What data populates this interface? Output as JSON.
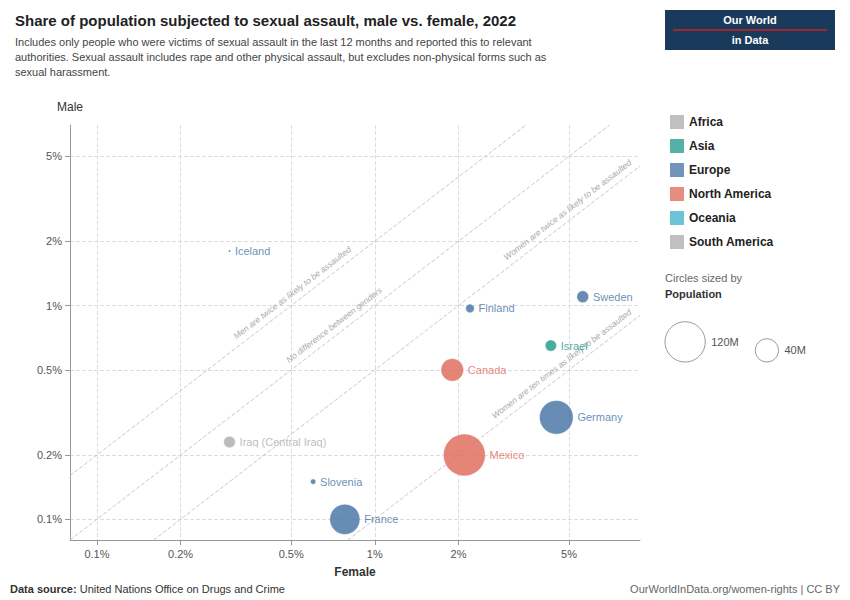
{
  "chart_data": {
    "type": "scatter",
    "title": "Share of population subjected to sexual assault, male vs. female, 2022",
    "subtitle": "Includes only people who were victims of sexual assault in the last 12 months and reported this to relevant\nauthorities. Sexual assault includes rape and other physical assault, but excludes non-physical forms such as\nsexual harassment.",
    "x_label": "Female",
    "y_label": "Male",
    "log": true,
    "grid": true,
    "legend": "right",
    "xlim": [
      0.0008,
      0.09
    ],
    "ylim": [
      0.0008,
      0.07
    ],
    "xticks": [
      {
        "value": 0.001,
        "label": "0.1%"
      },
      {
        "value": 0.002,
        "label": "0.2%"
      },
      {
        "value": 0.005,
        "label": "0.5%"
      },
      {
        "value": 0.01,
        "label": "1%"
      },
      {
        "value": 0.02,
        "label": "2%"
      },
      {
        "value": 0.05,
        "label": "5%"
      }
    ],
    "yticks": [
      {
        "value": 0.001,
        "label": "0.1%"
      },
      {
        "value": 0.002,
        "label": "0.2%"
      },
      {
        "value": 0.005,
        "label": "0.5%"
      },
      {
        "value": 0.01,
        "label": "1%"
      },
      {
        "value": 0.02,
        "label": "2%"
      },
      {
        "value": 0.05,
        "label": "5%"
      }
    ],
    "points": [
      {
        "name": "Iceland",
        "x": 0.003,
        "y": 0.018,
        "size": 0.37,
        "color": "#4e79a7"
      },
      {
        "name": "France",
        "x": 0.0078,
        "y": 0.001,
        "size": 68,
        "color": "#4e79a7"
      },
      {
        "name": "Slovenia",
        "x": 0.006,
        "y": 0.0015,
        "size": 2.1,
        "color": "#4e79a7"
      },
      {
        "name": "Finland",
        "x": 0.022,
        "y": 0.0097,
        "size": 5.5,
        "color": "#4e79a7"
      },
      {
        "name": "Sweden",
        "x": 0.056,
        "y": 0.011,
        "size": 10.4,
        "color": "#4e79a7"
      },
      {
        "name": "Germany",
        "x": 0.045,
        "y": 0.003,
        "size": 84,
        "color": "#4e79a7"
      },
      {
        "name": "Iraq (Central Iraq)",
        "x": 0.003,
        "y": 0.0023,
        "size": 10,
        "color": "#b0b0b0"
      },
      {
        "name": "Israel",
        "x": 0.043,
        "y": 0.0065,
        "size": 9.4,
        "color": "#2a9d8f"
      },
      {
        "name": "Canada",
        "x": 0.019,
        "y": 0.005,
        "size": 38,
        "color": "#e07060"
      },
      {
        "name": "Mexico",
        "x": 0.021,
        "y": 0.002,
        "size": 130,
        "color": "#e07060"
      }
    ],
    "legend_items": [
      {
        "name": "Africa",
        "color": "#b0b0b0"
      },
      {
        "name": "Asia",
        "color": "#2a9d8f"
      },
      {
        "name": "Europe",
        "color": "#4e79a7"
      },
      {
        "name": "North America",
        "color": "#e07060"
      },
      {
        "name": "Oceania",
        "color": "#48b4c8"
      },
      {
        "name": "South America",
        "color": "#b0b0b0"
      }
    ],
    "size_legend": {
      "title": "Circles sized by",
      "label": "Population",
      "values": [
        {
          "value": 120,
          "label": "120M"
        },
        {
          "value": 40,
          "label": "40M"
        }
      ]
    },
    "reference_lines": [
      {
        "slope": 2,
        "label": "Men are twice as likely to be assaulted"
      },
      {
        "slope": 1,
        "label": "No difference between genders"
      },
      {
        "slope": 0.5,
        "label": "Women are twice as likely to be assaulted"
      },
      {
        "slope": 0.1,
        "label": "Women are ten times as likely to be assaulted"
      }
    ],
    "logo": {
      "lines": [
        "Our World",
        "in Data"
      ],
      "color": "#1a3a5c"
    },
    "source": {
      "prefix": "Data source: ",
      "text": "United Nations Office on Drugs and Crime"
    },
    "url": "OurWorldInData.org/women-rights | CC BY"
  }
}
